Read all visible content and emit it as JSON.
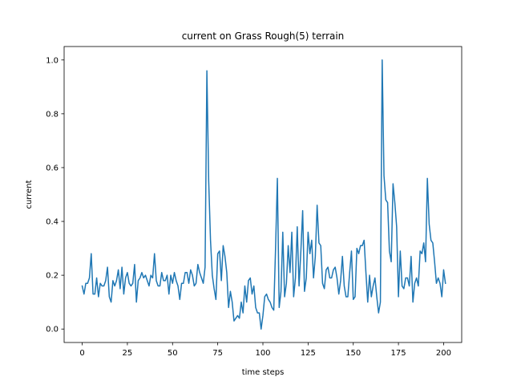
{
  "chart_data": {
    "type": "line",
    "title": "current on Grass Rough(5) terrain",
    "xlabel": "time steps",
    "ylabel": "current",
    "xlim": [
      -10,
      210
    ],
    "ylim": [
      -0.05,
      1.05
    ],
    "x_ticks": [
      0,
      25,
      50,
      75,
      100,
      125,
      150,
      175,
      200
    ],
    "y_ticks": [
      0.0,
      0.2,
      0.4,
      0.6,
      0.8,
      1.0
    ],
    "x_tick_labels": [
      "0",
      "25",
      "50",
      "75",
      "100",
      "125",
      "150",
      "175",
      "200"
    ],
    "y_tick_labels": [
      "0.0",
      "0.2",
      "0.4",
      "0.6",
      "0.8",
      "1.0"
    ],
    "grid": false,
    "line_color": "#1f77b4",
    "series": [
      {
        "x_start": 0,
        "x_step": 1,
        "values": [
          0.16,
          0.13,
          0.17,
          0.17,
          0.19,
          0.28,
          0.13,
          0.13,
          0.19,
          0.12,
          0.17,
          0.16,
          0.16,
          0.18,
          0.23,
          0.12,
          0.1,
          0.18,
          0.16,
          0.18,
          0.22,
          0.15,
          0.23,
          0.13,
          0.19,
          0.21,
          0.17,
          0.16,
          0.17,
          0.24,
          0.1,
          0.18,
          0.19,
          0.21,
          0.19,
          0.2,
          0.18,
          0.16,
          0.2,
          0.19,
          0.28,
          0.18,
          0.16,
          0.16,
          0.21,
          0.18,
          0.18,
          0.2,
          0.13,
          0.2,
          0.17,
          0.21,
          0.18,
          0.16,
          0.11,
          0.17,
          0.17,
          0.21,
          0.21,
          0.17,
          0.22,
          0.2,
          0.16,
          0.17,
          0.24,
          0.21,
          0.19,
          0.17,
          0.23,
          0.96,
          0.55,
          0.33,
          0.2,
          0.15,
          0.11,
          0.28,
          0.29,
          0.18,
          0.31,
          0.27,
          0.21,
          0.08,
          0.14,
          0.1,
          0.03,
          0.04,
          0.05,
          0.04,
          0.1,
          0.06,
          0.16,
          0.1,
          0.18,
          0.19,
          0.13,
          0.16,
          0.08,
          0.06,
          0.06,
          0.0,
          0.05,
          0.12,
          0.13,
          0.11,
          0.1,
          0.08,
          0.07,
          0.3,
          0.56,
          0.08,
          0.14,
          0.36,
          0.12,
          0.17,
          0.31,
          0.21,
          0.36,
          0.12,
          0.19,
          0.38,
          0.16,
          0.29,
          0.44,
          0.14,
          0.19,
          0.36,
          0.28,
          0.33,
          0.19,
          0.27,
          0.46,
          0.32,
          0.31,
          0.17,
          0.15,
          0.22,
          0.23,
          0.19,
          0.19,
          0.22,
          0.23,
          0.19,
          0.13,
          0.18,
          0.27,
          0.16,
          0.12,
          0.12,
          0.21,
          0.29,
          0.11,
          0.12,
          0.3,
          0.28,
          0.31,
          0.31,
          0.33,
          0.21,
          0.1,
          0.2,
          0.12,
          0.16,
          0.19,
          0.12,
          0.06,
          0.1,
          1.0,
          0.57,
          0.48,
          0.47,
          0.29,
          0.25,
          0.54,
          0.47,
          0.38,
          0.12,
          0.29,
          0.16,
          0.15,
          0.19,
          0.19,
          0.16,
          0.27,
          0.1,
          0.17,
          0.19,
          0.16,
          0.29,
          0.28,
          0.32,
          0.25,
          0.56,
          0.39,
          0.33,
          0.32,
          0.25,
          0.17,
          0.19,
          0.17,
          0.12,
          0.22,
          0.17
        ]
      }
    ]
  }
}
